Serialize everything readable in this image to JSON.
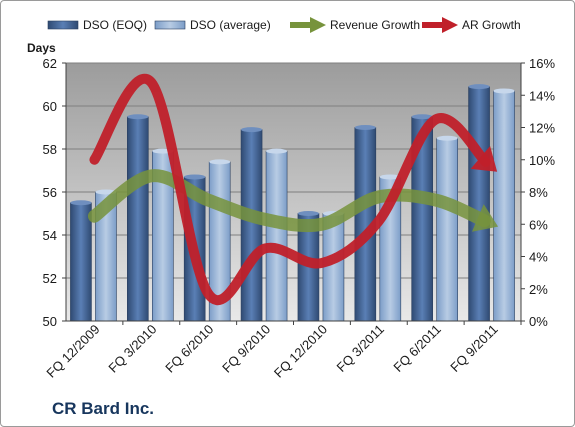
{
  "company": "CR Bard Inc.",
  "chart_data": {
    "type": "bar",
    "categories": [
      "FQ 12/2009",
      "FQ 3/2010",
      "FQ 6/2010",
      "FQ 9/2010",
      "FQ 12/2010",
      "FQ 3/2011",
      "FQ 6/2011",
      "FQ 9/2011"
    ],
    "ylabel": "Days",
    "ylim": [
      50,
      62
    ],
    "y_ticks": [
      50,
      52,
      54,
      56,
      58,
      60,
      62
    ],
    "y2lim": [
      0,
      16
    ],
    "y2_ticks": [
      "0%",
      "2%",
      "4%",
      "6%",
      "8%",
      "10%",
      "12%",
      "14%",
      "16%"
    ],
    "grid": true,
    "legend_position": "top",
    "series": [
      {
        "name": "DSO (EOQ)",
        "type": "bar",
        "axis": "left",
        "color": "#4a6a9a",
        "values": [
          55.5,
          59.5,
          56.7,
          58.9,
          55.0,
          59.0,
          59.5,
          60.9
        ]
      },
      {
        "name": "DSO (average)",
        "type": "bar",
        "axis": "left",
        "color": "#95b3d7",
        "values": [
          56.0,
          57.9,
          57.4,
          57.9,
          55.0,
          56.7,
          58.5,
          60.7
        ]
      },
      {
        "name": "Revenue Growth",
        "type": "line",
        "axis": "right",
        "unit": "%",
        "color": "#77933c",
        "values": [
          6.5,
          9.0,
          7.5,
          6.3,
          6.0,
          7.7,
          7.5,
          6.0
        ]
      },
      {
        "name": "AR Growth",
        "type": "line",
        "axis": "right",
        "unit": "%",
        "color": "#c0202a",
        "values": [
          10.0,
          14.8,
          1.7,
          4.5,
          3.6,
          6.2,
          12.5,
          9.5
        ]
      }
    ]
  }
}
